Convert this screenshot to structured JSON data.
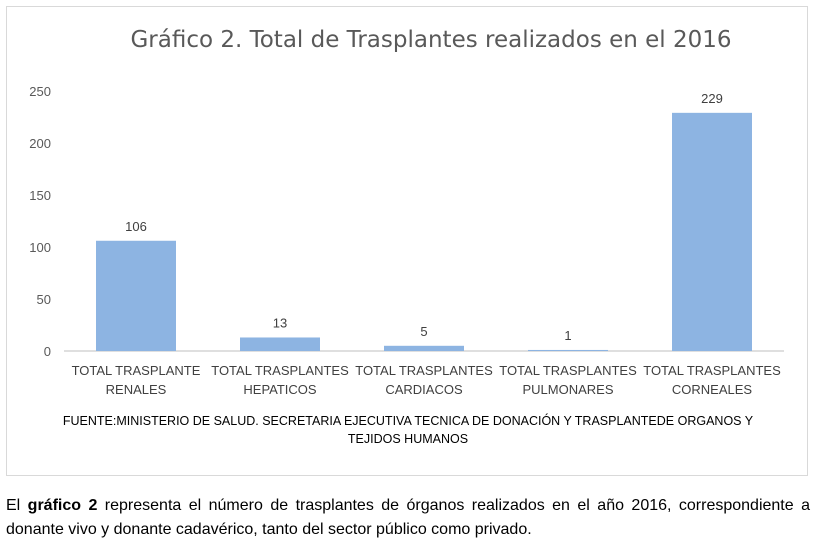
{
  "chart_data": {
    "type": "bar",
    "title": "Gráfico 2. Total de Trasplantes realizados en el 2016",
    "categories": [
      [
        "TOTAL TRASPLANTE",
        "RENALES"
      ],
      [
        "TOTAL TRASPLANTES",
        "HEPATICOS"
      ],
      [
        "TOTAL TRASPLANTES",
        "CARDIACOS"
      ],
      [
        "TOTAL TRASPLANTES",
        "PULMONARES"
      ],
      [
        "TOTAL TRASPLANTES",
        "CORNEALES"
      ]
    ],
    "values": [
      106,
      13,
      5,
      1,
      229
    ],
    "ylim": [
      0,
      250
    ],
    "yticks": [
      0,
      50,
      100,
      150,
      200,
      250
    ],
    "xlabel": "",
    "ylabel": "",
    "grid": false,
    "legend": "none",
    "bar_color": "#8db4e2",
    "source": [
      "FUENTE:MINISTERIO DE SALUD. SECRETARIA EJECUTIVA TECNICA DE DONACIÓN Y TRASPLANTEDE ORGANOS Y",
      "TEJIDOS HUMANOS"
    ]
  },
  "caption": {
    "prefix": "El ",
    "bold": "gráfico 2",
    "rest": " representa el número de trasplantes de órganos realizados en el año  2016, correspondiente a donante vivo y donante cadavérico, tanto del sector público como privado."
  }
}
